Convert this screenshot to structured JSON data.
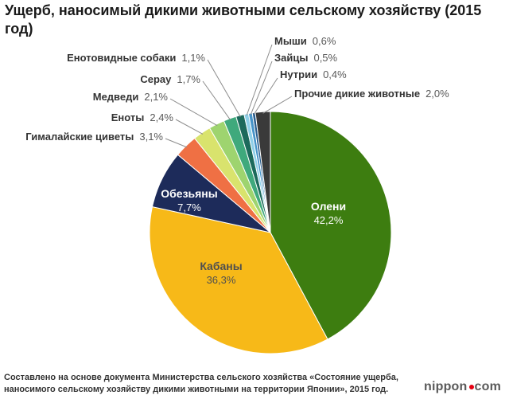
{
  "title": "Ущерб, наносимый дикими животными сельскому хозяйству (2015 год)",
  "source_note": "Составлено на основе документа Министерства сельского хозяйства «Состояние ущерба, наносимого сельскому хозяйству дикими животными на территории Японии», 2015 год.",
  "logo": {
    "prefix": "nippon",
    "suffix": "com",
    "dot_color": "#e60012"
  },
  "chart_data": {
    "type": "pie",
    "title": "Ущерб, наносимый дикими животными сельскому хозяйству (2015 год)",
    "unit": "%",
    "legend_position": "callout-labels",
    "slices": [
      {
        "key": "deer",
        "label": "Олени",
        "value": 42.2,
        "display": "42,2%",
        "color": "#3d7d10",
        "label_placement": "inside"
      },
      {
        "key": "wild-boars",
        "label": "Кабаны",
        "value": 36.3,
        "display": "36,3%",
        "color": "#f7b918",
        "label_placement": "inside"
      },
      {
        "key": "monkeys",
        "label": "Обезьяны",
        "value": 7.7,
        "display": "7,7%",
        "color": "#1d2b5a",
        "label_placement": "inside"
      },
      {
        "key": "masked-palm-civets",
        "label": "Гималайские циветы",
        "value": 3.1,
        "display": "3,1%",
        "color": "#ef7044",
        "label_placement": "callout"
      },
      {
        "key": "raccoons",
        "label": "Еноты",
        "value": 2.4,
        "display": "2,4%",
        "color": "#d9e36d",
        "label_placement": "callout"
      },
      {
        "key": "bears",
        "label": "Медведи",
        "value": 2.1,
        "display": "2,1%",
        "color": "#9ed46f",
        "label_placement": "callout"
      },
      {
        "key": "serows",
        "label": "Серау",
        "value": 1.7,
        "display": "1,7%",
        "color": "#3fa97c",
        "label_placement": "callout"
      },
      {
        "key": "raccoon-dogs",
        "label": "Енотовидные собаки",
        "value": 1.1,
        "display": "1,1%",
        "color": "#1c6a5c",
        "label_placement": "callout"
      },
      {
        "key": "mice",
        "label": "Мыши",
        "value": 0.6,
        "display": "0,6%",
        "color": "#8ecfe8",
        "label_placement": "callout"
      },
      {
        "key": "hares",
        "label": "Зайцы",
        "value": 0.5,
        "display": "0,5%",
        "color": "#4794c9",
        "label_placement": "callout"
      },
      {
        "key": "nutria",
        "label": "Нутрии",
        "value": 0.4,
        "display": "0,4%",
        "color": "#2b5e8e",
        "label_placement": "callout"
      },
      {
        "key": "other-wild-animals",
        "label": "Прочие дикие животные",
        "value": 2.0,
        "display": "2,0%",
        "color": "#3a3a3a",
        "label_placement": "callout"
      }
    ]
  }
}
